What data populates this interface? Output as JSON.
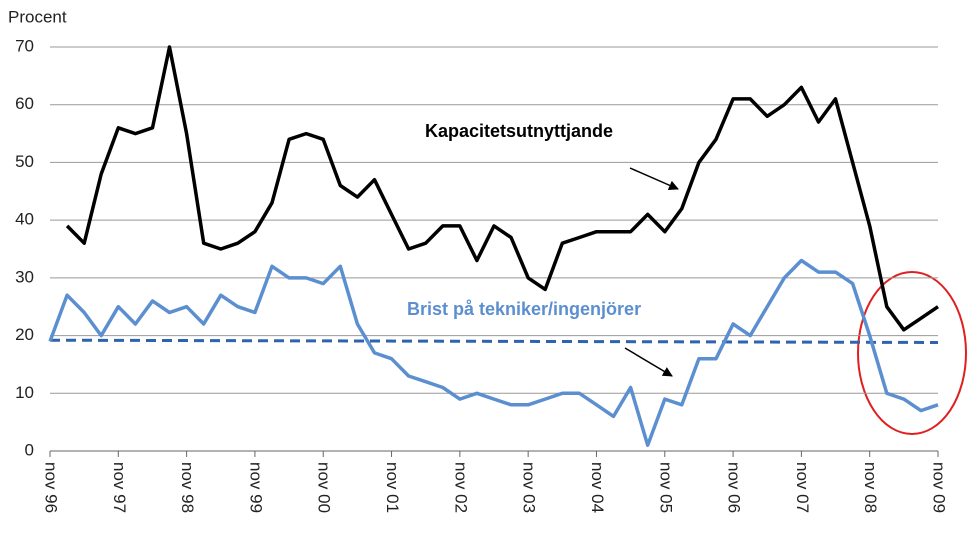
{
  "chart_data": {
    "type": "line",
    "ylabel": "Procent",
    "ylim": [
      0,
      70
    ],
    "yticks": [
      0,
      10,
      20,
      30,
      40,
      50,
      60,
      70
    ],
    "grid": true,
    "categories": [
      "nov 96",
      null,
      null,
      null,
      "nov 97",
      null,
      null,
      null,
      "nov 98",
      null,
      null,
      null,
      "nov 99",
      null,
      null,
      null,
      "nov 00",
      null,
      null,
      null,
      "nov 01",
      null,
      null,
      null,
      "nov 02",
      null,
      null,
      null,
      "nov 03",
      null,
      null,
      null,
      "nov 04",
      null,
      null,
      null,
      "nov 05",
      null,
      null,
      null,
      "nov 06",
      null,
      null,
      null,
      "nov 07",
      null,
      null,
      null,
      "nov 08",
      null,
      null,
      null,
      "nov 09"
    ],
    "series": [
      {
        "name": "Kapacitetsutnyttjande",
        "color": "#000000",
        "values": [
          null,
          39,
          36,
          48,
          56,
          55,
          56,
          70,
          55,
          36,
          35,
          36,
          38,
          43,
          54,
          55,
          54,
          46,
          44,
          47,
          41,
          35,
          36,
          39,
          39,
          33,
          39,
          37,
          30,
          28,
          36,
          37,
          38,
          38,
          38,
          41,
          38,
          42,
          50,
          54,
          61,
          61,
          58,
          60,
          63,
          57,
          61,
          50,
          39,
          25,
          21,
          23,
          25
        ]
      },
      {
        "name": "Brist på tekniker/ingenjörer",
        "color": "#5b8fd0",
        "values": [
          19,
          27,
          24,
          20,
          25,
          22,
          26,
          24,
          25,
          22,
          27,
          25,
          24,
          32,
          30,
          30,
          29,
          32,
          22,
          17,
          16,
          13,
          12,
          11,
          9,
          10,
          9,
          8,
          8,
          9,
          10,
          10,
          8,
          6,
          11,
          1,
          9,
          8,
          16,
          16,
          22,
          20,
          25,
          30,
          33,
          31,
          31,
          29,
          20,
          10,
          9,
          7,
          8
        ]
      }
    ],
    "reference_line": {
      "values": [
        19.2,
        18.8
      ],
      "color": "#2e63b0"
    }
  }
}
